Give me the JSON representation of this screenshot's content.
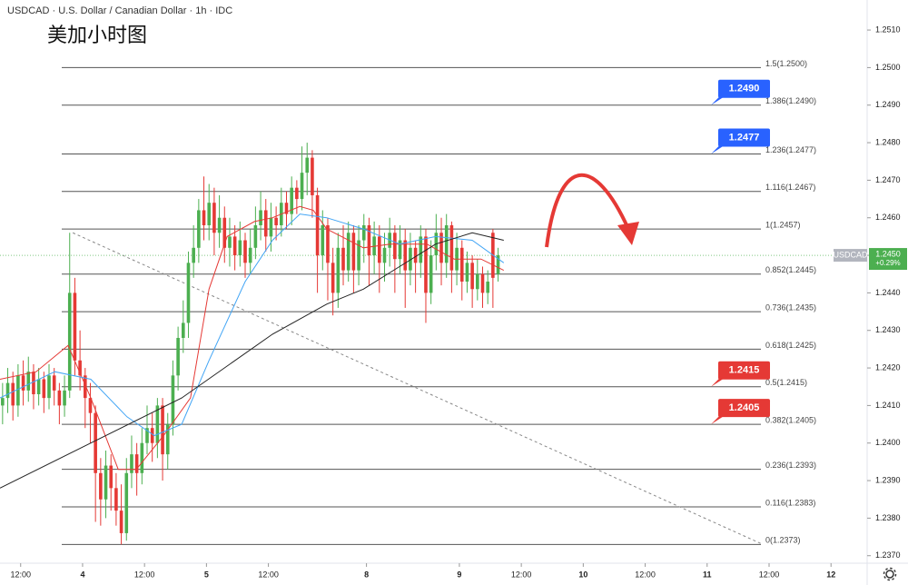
{
  "chart_data": {
    "type": "candlestick",
    "header": "USDCAD · U.S. Dollar / Canadian Dollar · 1h · IDC",
    "title": "美加小时图",
    "up_color": "#4caf50",
    "down_color": "#e53935",
    "xlim": [
      0,
      168
    ],
    "ylim": [
      1.2368,
      1.2518
    ],
    "grid": false,
    "yticks": [
      {
        "value": 1.251,
        "label": "1.2510"
      },
      {
        "value": 1.25,
        "label": "1.2500"
      },
      {
        "value": 1.249,
        "label": "1.2490"
      },
      {
        "value": 1.248,
        "label": "1.2480"
      },
      {
        "value": 1.247,
        "label": "1.2470"
      },
      {
        "value": 1.246,
        "label": "1.2460"
      },
      {
        "value": 1.245,
        "label": "1.2450"
      },
      {
        "value": 1.244,
        "label": "1.2440"
      },
      {
        "value": 1.243,
        "label": "1.2430"
      },
      {
        "value": 1.242,
        "label": "1.2420"
      },
      {
        "value": 1.241,
        "label": "1.2410"
      },
      {
        "value": 1.24,
        "label": "1.2400"
      },
      {
        "value": 1.239,
        "label": "1.2390"
      },
      {
        "value": 1.238,
        "label": "1.2380"
      },
      {
        "value": 1.237,
        "label": "1.2370"
      }
    ],
    "xticks": [
      {
        "value": 4,
        "label": "12:00"
      },
      {
        "value": 16,
        "label": "4"
      },
      {
        "value": 28,
        "label": "12:00"
      },
      {
        "value": 40,
        "label": "5"
      },
      {
        "value": 52,
        "label": "12:00"
      },
      {
        "value": 71,
        "label": "8"
      },
      {
        "value": 89,
        "label": "9"
      },
      {
        "value": 101,
        "label": "12:00"
      },
      {
        "value": 113,
        "label": "10"
      },
      {
        "value": 125,
        "label": "12:00"
      },
      {
        "value": 137,
        "label": "11"
      },
      {
        "value": 149,
        "label": "12:00"
      },
      {
        "value": 161,
        "label": "12"
      }
    ],
    "ohlc": [
      [
        1.241,
        1.2416,
        1.2405,
        1.2412
      ],
      [
        1.2412,
        1.242,
        1.2408,
        1.2416
      ],
      [
        1.2416,
        1.2419,
        1.2406,
        1.241
      ],
      [
        1.241,
        1.2421,
        1.2407,
        1.2418
      ],
      [
        1.2418,
        1.2422,
        1.241,
        1.2414
      ],
      [
        1.2414,
        1.2423,
        1.2411,
        1.2419
      ],
      [
        1.2419,
        1.2421,
        1.2409,
        1.2413
      ],
      [
        1.2413,
        1.242,
        1.241,
        1.2417
      ],
      [
        1.2417,
        1.2419,
        1.2408,
        1.2412
      ],
      [
        1.2412,
        1.2421,
        1.2409,
        1.2418
      ],
      [
        1.2418,
        1.242,
        1.241,
        1.2414
      ],
      [
        1.2414,
        1.2416,
        1.2405,
        1.241
      ],
      [
        1.241,
        1.2418,
        1.2407,
        1.2414
      ],
      [
        1.2414,
        1.2456,
        1.2412,
        1.244
      ],
      [
        1.244,
        1.2444,
        1.2418,
        1.2422
      ],
      [
        1.2422,
        1.243,
        1.2414,
        1.2418
      ],
      [
        1.2418,
        1.242,
        1.2404,
        1.2412
      ],
      [
        1.2412,
        1.2416,
        1.24,
        1.2408
      ],
      [
        1.2408,
        1.241,
        1.2379,
        1.2392
      ],
      [
        1.2392,
        1.2396,
        1.2378,
        1.2385
      ],
      [
        1.2385,
        1.2398,
        1.238,
        1.2394
      ],
      [
        1.2394,
        1.2397,
        1.2382,
        1.2388
      ],
      [
        1.2388,
        1.2392,
        1.2378,
        1.2382
      ],
      [
        1.2382,
        1.2389,
        1.2373,
        1.2376
      ],
      [
        1.2376,
        1.2396,
        1.2374,
        1.2392
      ],
      [
        1.2392,
        1.2402,
        1.2388,
        1.2397
      ],
      [
        1.2397,
        1.24,
        1.2386,
        1.2392
      ],
      [
        1.2392,
        1.2404,
        1.2389,
        1.24
      ],
      [
        1.24,
        1.241,
        1.2397,
        1.2404
      ],
      [
        1.2404,
        1.2408,
        1.2395,
        1.24
      ],
      [
        1.24,
        1.2412,
        1.2396,
        1.241
      ],
      [
        1.241,
        1.2412,
        1.239,
        1.2397
      ],
      [
        1.2397,
        1.2408,
        1.2393,
        1.2405
      ],
      [
        1.2405,
        1.2422,
        1.2402,
        1.2418
      ],
      [
        1.2418,
        1.2431,
        1.2414,
        1.2428
      ],
      [
        1.2428,
        1.2438,
        1.2424,
        1.2432
      ],
      [
        1.2432,
        1.2451,
        1.2428,
        1.2448
      ],
      [
        1.2448,
        1.2458,
        1.2444,
        1.2452
      ],
      [
        1.2452,
        1.2465,
        1.2448,
        1.2462
      ],
      [
        1.2462,
        1.2471,
        1.2454,
        1.2458
      ],
      [
        1.2458,
        1.2469,
        1.2454,
        1.2464
      ],
      [
        1.2464,
        1.2468,
        1.245,
        1.2456
      ],
      [
        1.2456,
        1.2466,
        1.2452,
        1.246
      ],
      [
        1.246,
        1.2463,
        1.2448,
        1.2452
      ],
      [
        1.2452,
        1.246,
        1.2447,
        1.2455
      ],
      [
        1.2455,
        1.2458,
        1.2446,
        1.245
      ],
      [
        1.245,
        1.2459,
        1.2447,
        1.2454
      ],
      [
        1.2454,
        1.2456,
        1.2444,
        1.2448
      ],
      [
        1.2448,
        1.2457,
        1.2445,
        1.2452
      ],
      [
        1.2452,
        1.2463,
        1.2449,
        1.2458
      ],
      [
        1.2458,
        1.2467,
        1.2454,
        1.2462
      ],
      [
        1.2462,
        1.2465,
        1.2451,
        1.2455
      ],
      [
        1.2455,
        1.2464,
        1.2451,
        1.246
      ],
      [
        1.246,
        1.2463,
        1.2454,
        1.2458
      ],
      [
        1.2458,
        1.2468,
        1.2455,
        1.2464
      ],
      [
        1.2464,
        1.2467,
        1.2457,
        1.2461
      ],
      [
        1.2461,
        1.2471,
        1.2458,
        1.2468
      ],
      [
        1.2468,
        1.247,
        1.2461,
        1.2465
      ],
      [
        1.2465,
        1.2479,
        1.2462,
        1.2472
      ],
      [
        1.2472,
        1.248,
        1.2466,
        1.2476
      ],
      [
        1.2476,
        1.2478,
        1.246,
        1.2466
      ],
      [
        1.2466,
        1.2468,
        1.244,
        1.245
      ],
      [
        1.245,
        1.2462,
        1.2446,
        1.2458
      ],
      [
        1.2458,
        1.246,
        1.2438,
        1.2448
      ],
      [
        1.2448,
        1.2452,
        1.2434,
        1.244
      ],
      [
        1.244,
        1.2456,
        1.2436,
        1.2452
      ],
      [
        1.2452,
        1.2458,
        1.2442,
        1.2446
      ],
      [
        1.2446,
        1.2459,
        1.2443,
        1.2456
      ],
      [
        1.2456,
        1.2458,
        1.244,
        1.2446
      ],
      [
        1.2446,
        1.2458,
        1.2442,
        1.2454
      ],
      [
        1.2454,
        1.2461,
        1.2448,
        1.2458
      ],
      [
        1.2458,
        1.246,
        1.2442,
        1.245
      ],
      [
        1.245,
        1.2459,
        1.2445,
        1.2455
      ],
      [
        1.2455,
        1.2458,
        1.244,
        1.2448
      ],
      [
        1.2448,
        1.2456,
        1.2443,
        1.2452
      ],
      [
        1.2452,
        1.246,
        1.2447,
        1.2456
      ],
      [
        1.2456,
        1.2458,
        1.244,
        1.2449
      ],
      [
        1.2449,
        1.2458,
        1.2445,
        1.2454
      ],
      [
        1.2454,
        1.2457,
        1.2436,
        1.2446
      ],
      [
        1.2446,
        1.2456,
        1.2442,
        1.2452
      ],
      [
        1.2452,
        1.2454,
        1.244,
        1.2448
      ],
      [
        1.2448,
        1.2458,
        1.2444,
        1.2455
      ],
      [
        1.2455,
        1.2457,
        1.2432,
        1.244
      ],
      [
        1.244,
        1.2454,
        1.2437,
        1.245
      ],
      [
        1.245,
        1.2461,
        1.2446,
        1.2456
      ],
      [
        1.2456,
        1.246,
        1.2442,
        1.2448
      ],
      [
        1.2448,
        1.2461,
        1.2444,
        1.2458
      ],
      [
        1.2458,
        1.2459,
        1.244,
        1.2446
      ],
      [
        1.2446,
        1.2456,
        1.2442,
        1.2452
      ],
      [
        1.2452,
        1.2454,
        1.2438,
        1.2443
      ],
      [
        1.2443,
        1.2451,
        1.244,
        1.2448
      ],
      [
        1.2448,
        1.245,
        1.2436,
        1.2441
      ],
      [
        1.2441,
        1.2449,
        1.2438,
        1.2445
      ],
      [
        1.2445,
        1.2447,
        1.2436,
        1.244
      ],
      [
        1.244,
        1.2446,
        1.2437,
        1.2443
      ],
      [
        1.2456,
        1.2457,
        1.2436,
        1.2444
      ],
      [
        1.2445,
        1.2452,
        1.2443,
        1.245
      ]
    ],
    "moving_averages": [
      {
        "color": "#e53935",
        "x": [
          0,
          7,
          13.2,
          17.6,
          22.9,
          26.4,
          31.7,
          36.9,
          40.5,
          44,
          49.3,
          52.8,
          58.1,
          60.7,
          63.3,
          70.4,
          75.6,
          82.7,
          88,
          93.2,
          97.6
        ],
        "values": [
          1.2417,
          1.2419,
          1.2426,
          1.2412,
          1.2393,
          1.2393,
          1.2402,
          1.2412,
          1.2441,
          1.2455,
          1.2459,
          1.246,
          1.2463,
          1.2462,
          1.2457,
          1.2452,
          1.2453,
          1.2453,
          1.2449,
          1.2449,
          1.2446
        ]
      },
      {
        "color": "#42a5f5",
        "x": [
          0,
          10.6,
          17.6,
          24.6,
          29.9,
          35.2,
          40.5,
          47.5,
          52.8,
          58.1,
          63.3,
          70.4,
          77.4,
          84.4,
          91.5,
          97.6
        ],
        "values": [
          1.2412,
          1.2419,
          1.2417,
          1.2407,
          1.2402,
          1.2405,
          1.2422,
          1.2443,
          1.2454,
          1.2461,
          1.246,
          1.2457,
          1.2453,
          1.2455,
          1.2454,
          1.2448
        ]
      },
      {
        "color": "#222222",
        "x": [
          0,
          17.6,
          35.2,
          52.8,
          63.3,
          70.4,
          77.4,
          84.4,
          91.5,
          97.6
        ],
        "values": [
          1.2388,
          1.24,
          1.2412,
          1.2429,
          1.2437,
          1.2441,
          1.2447,
          1.2453,
          1.2456,
          1.2454
        ]
      }
    ],
    "fib_levels": [
      {
        "label": "1.5(1.2500)",
        "value": 1.25
      },
      {
        "label": "1.386(1.2490)",
        "value": 1.249
      },
      {
        "label": "1.236(1.2477)",
        "value": 1.2477
      },
      {
        "label": "1.116(1.2467)",
        "value": 1.2467
      },
      {
        "label": "1(1.2457)",
        "value": 1.2457
      },
      {
        "label": "0.852(1.2445)",
        "value": 1.2445
      },
      {
        "label": "0.736(1.2435)",
        "value": 1.2435
      },
      {
        "label": "0.618(1.2425)",
        "value": 1.2425
      },
      {
        "label": "0.5(1.2415)",
        "value": 1.2415
      },
      {
        "label": "0.382(1.2405)",
        "value": 1.2405
      },
      {
        "label": "0.236(1.2393)",
        "value": 1.2393
      },
      {
        "label": "0.116(1.2383)",
        "value": 1.2383
      },
      {
        "label": "0(1.2373)",
        "value": 1.2373
      }
    ],
    "price_tags": [
      {
        "value": 1.249,
        "label": "1.2490",
        "color": "#2962ff"
      },
      {
        "value": 1.2477,
        "label": "1.2477",
        "color": "#2962ff"
      },
      {
        "value": 1.2415,
        "label": "1.2415",
        "color": "#e53935"
      },
      {
        "value": 1.2405,
        "label": "1.2405",
        "color": "#e53935"
      }
    ],
    "trendline": {
      "x": [
        14.1,
        147.8
      ],
      "values": [
        1.2456,
        1.2373
      ]
    },
    "last_price": {
      "symbol": "USDCAD",
      "value": 1.245,
      "label": "1.2450",
      "change": "+0.29%",
      "color": "#4caf50"
    }
  }
}
